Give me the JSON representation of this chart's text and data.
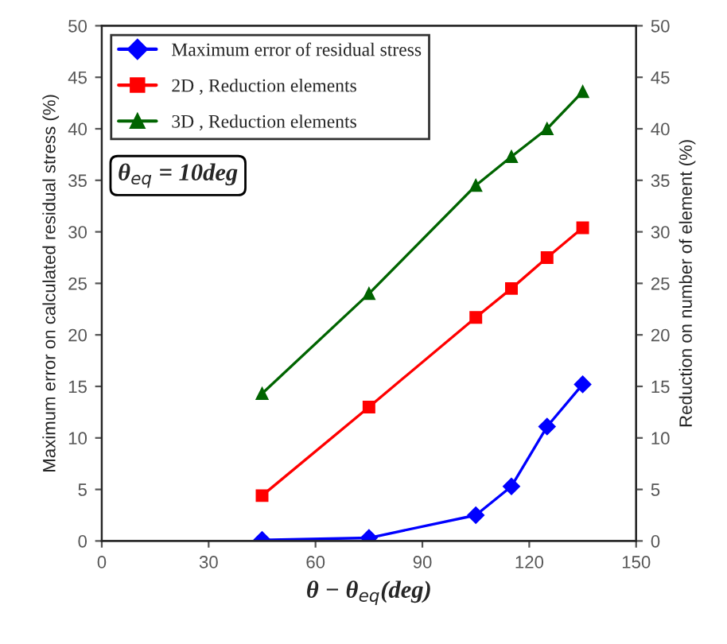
{
  "chart_data": {
    "type": "line",
    "xlabel": "θ − θ$_{eq}$(deg)",
    "ylabel": "Maximum error on calculated residual stress (%)",
    "y2label": "Reduction on number of element (%)",
    "x": [
      45,
      75,
      105,
      115,
      125,
      135
    ],
    "series": [
      {
        "name": "Maximum error of residual stress",
        "color": "#0000ff",
        "marker": "diamond",
        "values": [
          0.1,
          0.3,
          2.5,
          5.3,
          11.1,
          15.2
        ]
      },
      {
        "name": "2D , Reduction elements",
        "color": "#ff0000",
        "marker": "square",
        "values": [
          4.4,
          13.0,
          21.7,
          24.5,
          27.5,
          30.4
        ]
      },
      {
        "name": "3D , Reduction elements",
        "color": "#006400",
        "marker": "triangle",
        "values": [
          14.3,
          24.0,
          34.5,
          37.3,
          40.0,
          43.6
        ]
      }
    ],
    "xlim": [
      0,
      150
    ],
    "xticks": [
      0,
      30,
      60,
      90,
      120,
      150
    ],
    "ylim": [
      0,
      50
    ],
    "yticks": [
      0,
      5,
      10,
      15,
      20,
      25,
      30,
      35,
      40,
      45,
      50
    ],
    "y2lim": [
      0,
      50
    ],
    "y2ticks": [
      0,
      5,
      10,
      15,
      20,
      25,
      30,
      35,
      40,
      45,
      50
    ],
    "annotations": [
      "θ$_{eq}$ = 10deg"
    ],
    "legend": "top left",
    "grid": false
  }
}
